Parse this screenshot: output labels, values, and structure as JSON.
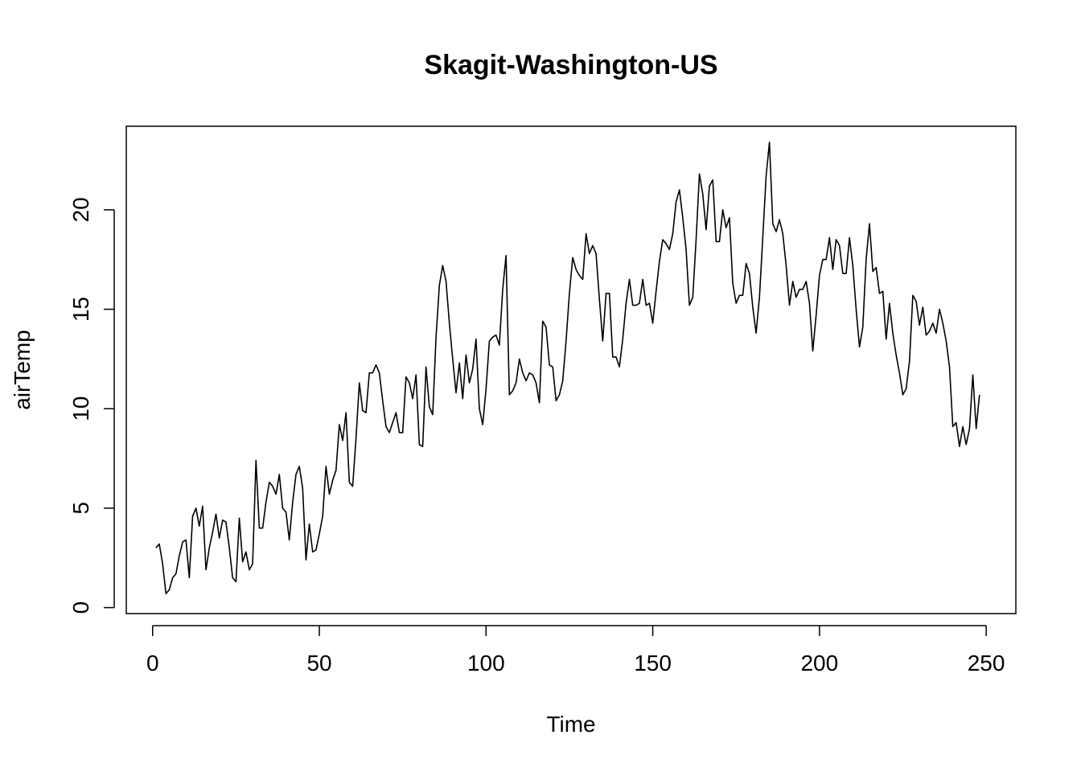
{
  "chart_data": {
    "type": "line",
    "title": "Skagit-Washington-US",
    "xlabel": "Time",
    "ylabel": "airTemp",
    "xlim": [
      -7.9,
      258.9
    ],
    "ylim": [
      -0.3,
      24.2
    ],
    "x_ticks": [
      0,
      50,
      100,
      150,
      200,
      250
    ],
    "x_tick_labels": [
      "0",
      "50",
      "100",
      "150",
      "200",
      "250"
    ],
    "y_ticks": [
      0,
      5,
      10,
      15,
      20
    ],
    "y_tick_labels": [
      "0",
      "5",
      "10",
      "15",
      "20"
    ],
    "grid": false,
    "x_start": 1,
    "series": [
      {
        "color": "#000000",
        "values": [
          3.0,
          3.2,
          2.2,
          0.7,
          0.9,
          1.5,
          1.7,
          2.6,
          3.3,
          3.4,
          1.5,
          4.6,
          5.0,
          4.1,
          5.1,
          1.9,
          3.0,
          3.8,
          4.7,
          3.5,
          4.4,
          4.3,
          3.0,
          1.5,
          1.3,
          4.5,
          2.3,
          2.8,
          1.9,
          2.2,
          7.4,
          4.0,
          4.0,
          5.3,
          6.3,
          6.1,
          5.7,
          6.7,
          5.0,
          4.8,
          3.4,
          5.3,
          6.7,
          7.1,
          6.0,
          2.4,
          4.2,
          2.8,
          2.9,
          3.7,
          4.6,
          7.1,
          5.7,
          6.4,
          6.9,
          9.2,
          8.4,
          9.8,
          6.3,
          6.1,
          8.5,
          11.3,
          9.9,
          9.8,
          11.8,
          11.8,
          12.2,
          11.8,
          10.4,
          9.1,
          8.8,
          9.3,
          9.8,
          8.8,
          8.8,
          11.6,
          11.3,
          10.5,
          11.7,
          8.2,
          8.1,
          12.1,
          10.1,
          9.7,
          13.6,
          16.2,
          17.2,
          16.4,
          14.3,
          12.5,
          10.8,
          12.3,
          10.5,
          12.7,
          11.3,
          12.0,
          13.5,
          10.0,
          9.2,
          11.0,
          13.4,
          13.6,
          13.7,
          13.2,
          16.0,
          17.7,
          10.7,
          10.9,
          11.3,
          12.5,
          11.8,
          11.4,
          11.8,
          11.7,
          11.3,
          10.3,
          14.4,
          14.1,
          12.2,
          12.1,
          10.4,
          10.7,
          11.4,
          13.4,
          15.8,
          17.6,
          17.0,
          16.7,
          16.5,
          18.8,
          17.8,
          18.2,
          17.8,
          15.5,
          13.4,
          15.8,
          15.8,
          12.6,
          12.6,
          12.1,
          13.5,
          15.3,
          16.5,
          15.2,
          15.2,
          15.3,
          16.5,
          15.2,
          15.3,
          14.3,
          15.9,
          17.4,
          18.5,
          18.3,
          18.0,
          18.8,
          20.4,
          21.0,
          19.6,
          18.0,
          15.2,
          15.6,
          18.5,
          21.8,
          20.8,
          19.0,
          21.2,
          21.5,
          18.4,
          18.4,
          20.0,
          19.1,
          19.6,
          16.3,
          15.3,
          15.7,
          15.7,
          17.3,
          16.8,
          15.1,
          13.8,
          15.6,
          18.6,
          21.7,
          23.4,
          19.3,
          18.9,
          19.5,
          18.8,
          17.2,
          15.2,
          16.4,
          15.6,
          16.0,
          16.0,
          16.4,
          15.3,
          12.9,
          14.7,
          16.7,
          17.5,
          17.5,
          18.6,
          17.0,
          18.5,
          18.2,
          16.8,
          16.8,
          18.6,
          17.2,
          15.0,
          13.1,
          14.1,
          17.5,
          19.3,
          16.9,
          17.1,
          15.8,
          15.9,
          13.5,
          15.3,
          13.8,
          12.7,
          11.8,
          10.7,
          11.0,
          12.4,
          15.7,
          15.4,
          14.2,
          15.1,
          13.7,
          13.9,
          14.3,
          13.8,
          15.0,
          14.3,
          13.4,
          12.1,
          9.1,
          9.3,
          8.1,
          9.1,
          8.2,
          9.0,
          11.7,
          9.0,
          10.7
        ]
      }
    ]
  }
}
